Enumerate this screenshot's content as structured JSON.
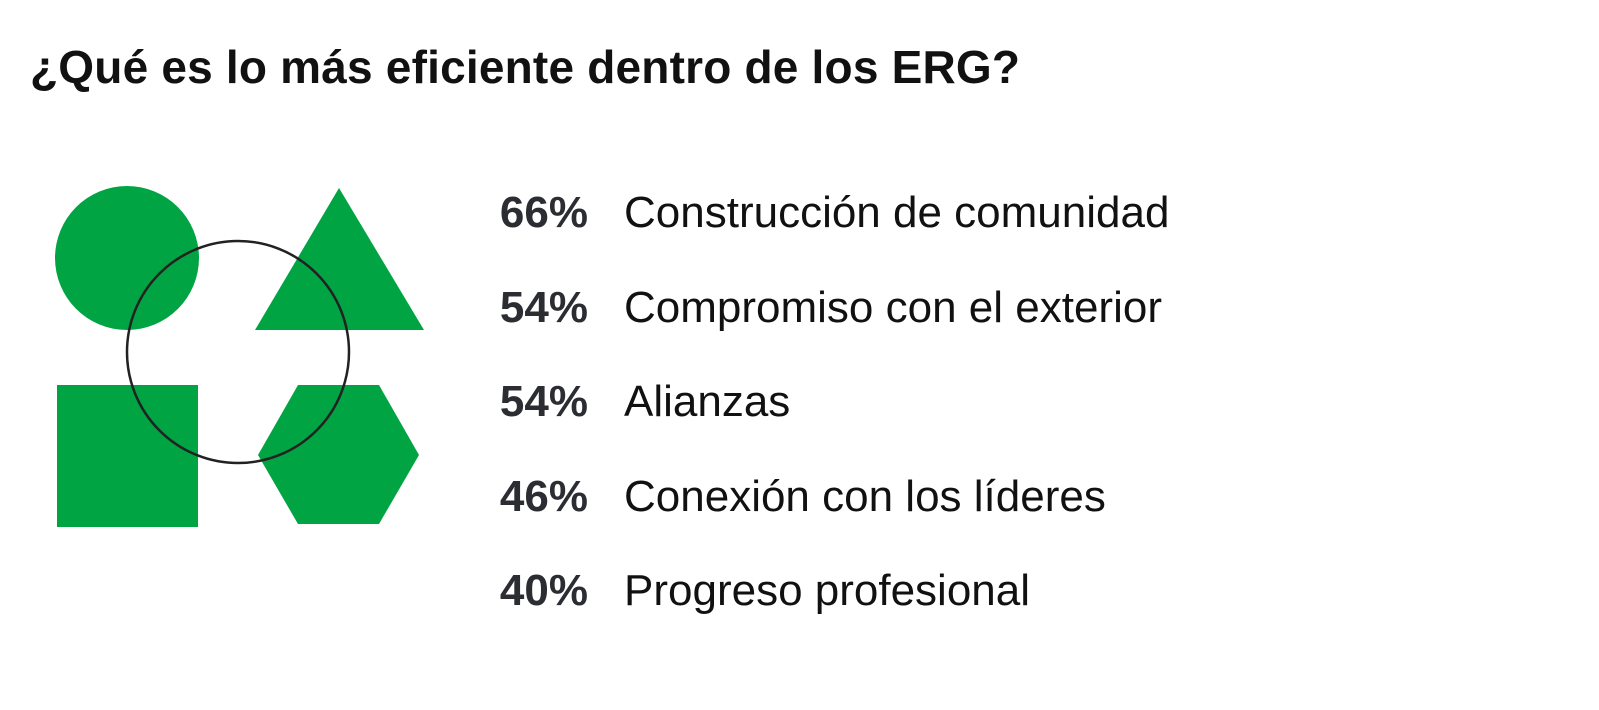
{
  "title": "¿Qué es lo más eficiente dentro de los ERG?",
  "colors": {
    "shape_green": "#00a443",
    "outline": "#222222",
    "text": "#111111",
    "percent_text": "#2b2d33"
  },
  "illustration": {
    "shapes": [
      "circle-icon",
      "triangle-icon",
      "square-icon",
      "hexagon-icon",
      "outline-circle-icon"
    ]
  },
  "stats": [
    {
      "percent": "66%",
      "label": "Construcción de comunidad"
    },
    {
      "percent": "54%",
      "label": "Compromiso con el exterior"
    },
    {
      "percent": "54%",
      "label": "Alianzas"
    },
    {
      "percent": "46%",
      "label": "Conexión con los líderes"
    },
    {
      "percent": "40%",
      "label": "Progreso profesional"
    }
  ]
}
